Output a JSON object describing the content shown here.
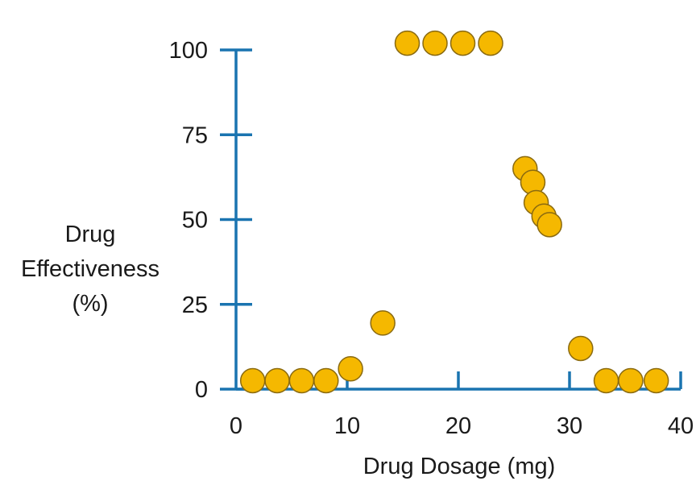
{
  "chart_data": {
    "type": "scatter",
    "title": "",
    "xlabel": "Drug Dosage (mg)",
    "ylabel_lines": [
      "Drug",
      "Effectiveness",
      "(%)"
    ],
    "xlim": [
      0,
      40
    ],
    "ylim": [
      0,
      100
    ],
    "x_ticks": [
      0,
      10,
      20,
      30,
      40
    ],
    "y_ticks": [
      0,
      25,
      50,
      75,
      100
    ],
    "grid": false,
    "legend": "none",
    "colors": {
      "axis": "#1a74b0",
      "point_fill": "#f5b800",
      "point_stroke": "#8a6a10",
      "text": "#1a1a1a"
    },
    "series": [
      {
        "points": [
          {
            "x": 1.5,
            "y": 2.5
          },
          {
            "x": 3.7,
            "y": 2.5
          },
          {
            "x": 5.9,
            "y": 2.5
          },
          {
            "x": 8.1,
            "y": 2.5
          },
          {
            "x": 10.3,
            "y": 6
          },
          {
            "x": 13.2,
            "y": 19.5
          },
          {
            "x": 15.4,
            "y": 102
          },
          {
            "x": 17.9,
            "y": 102
          },
          {
            "x": 20.4,
            "y": 102
          },
          {
            "x": 22.9,
            "y": 102
          },
          {
            "x": 26.0,
            "y": 65
          },
          {
            "x": 26.7,
            "y": 61
          },
          {
            "x": 27.0,
            "y": 55
          },
          {
            "x": 27.7,
            "y": 51
          },
          {
            "x": 28.2,
            "y": 48.5
          },
          {
            "x": 31.0,
            "y": 12
          },
          {
            "x": 33.3,
            "y": 2.5
          },
          {
            "x": 35.5,
            "y": 2.5
          },
          {
            "x": 37.8,
            "y": 2.5
          }
        ]
      }
    ]
  }
}
